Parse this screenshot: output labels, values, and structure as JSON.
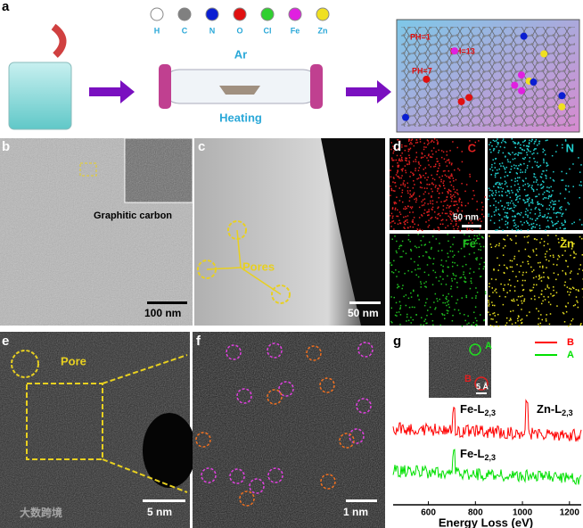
{
  "panel_labels": [
    "a",
    "b",
    "c",
    "d",
    "e",
    "f",
    "g"
  ],
  "panel_a": {
    "elements": [
      "H",
      "C",
      "N",
      "O",
      "Cl",
      "Fe",
      "Zn"
    ],
    "element_colors": [
      "#ffffff",
      "#808080",
      "#0a1ed2",
      "#e01010",
      "#30d030",
      "#e020e0",
      "#f0e020"
    ],
    "gas": "Ar",
    "process": "Heating",
    "ph_labels": [
      "PH=1",
      "PH=13",
      "PH=7"
    ]
  },
  "panel_b": {
    "annotation": "Graphitic carbon",
    "scale_bar": "100 nm"
  },
  "panel_c": {
    "annotation": "Pores",
    "scale_bar": "50 nm"
  },
  "panel_d": {
    "maps": [
      "C",
      "N",
      "Fe",
      "Zn"
    ],
    "map_colors": [
      "#e02020",
      "#20d0d0",
      "#20c020",
      "#e8e020"
    ],
    "scale_bar": "50 nm"
  },
  "panel_e": {
    "annotation": "Pore",
    "scale_bar": "5 nm"
  },
  "panel_f": {
    "scale_bar": "1 nm"
  },
  "chart_data": {
    "type": "line",
    "x_label": "Energy Loss (eV)",
    "xlim": [
      450,
      1250
    ],
    "xticks": [
      600,
      800,
      1000,
      1200
    ],
    "series": [
      {
        "name": "B",
        "color": "#ff0000"
      },
      {
        "name": "A",
        "color": "#00e000"
      }
    ],
    "annotations": [
      {
        "text": "Fe-L",
        "sub": "2,3"
      },
      {
        "text": "Zn-L",
        "sub": "2,3"
      },
      {
        "text": "Fe-L",
        "sub": "2,3"
      }
    ],
    "inset_labels": [
      "A",
      "B"
    ],
    "inset_scale_bar": "5 Å"
  },
  "watermark": "大数跨境"
}
